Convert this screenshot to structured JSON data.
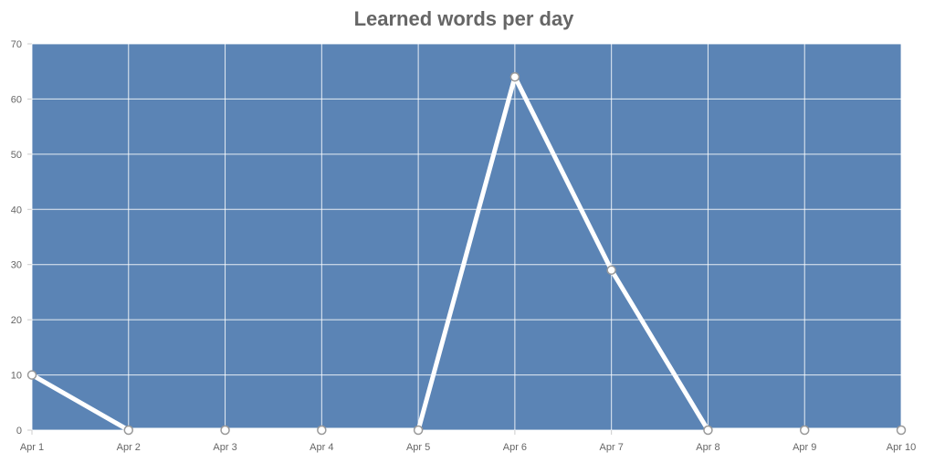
{
  "chart_data": {
    "type": "line",
    "title": "Learned words per day",
    "xlabel": "",
    "ylabel": "",
    "categories": [
      "Apr 1",
      "Apr 2",
      "Apr 3",
      "Apr 4",
      "Apr 5",
      "Apr 6",
      "Apr 7",
      "Apr 8",
      "Apr 9",
      "Apr 10"
    ],
    "series": [
      {
        "values": [
          10,
          0,
          0,
          0,
          0,
          64,
          29,
          0,
          0,
          0
        ]
      }
    ],
    "ylim": [
      0,
      70
    ],
    "yticks": [
      "0",
      "10",
      "20",
      "30",
      "40",
      "50",
      "60",
      "70"
    ],
    "grid": true,
    "legend": "none",
    "colors": {
      "plot_background": "#5b84b5",
      "line": "#ffffff",
      "grid": "#ffffff",
      "point_fill": "#ffffff",
      "point_stroke": "#999999",
      "title": "#666666",
      "tick_text": "#666666"
    }
  }
}
